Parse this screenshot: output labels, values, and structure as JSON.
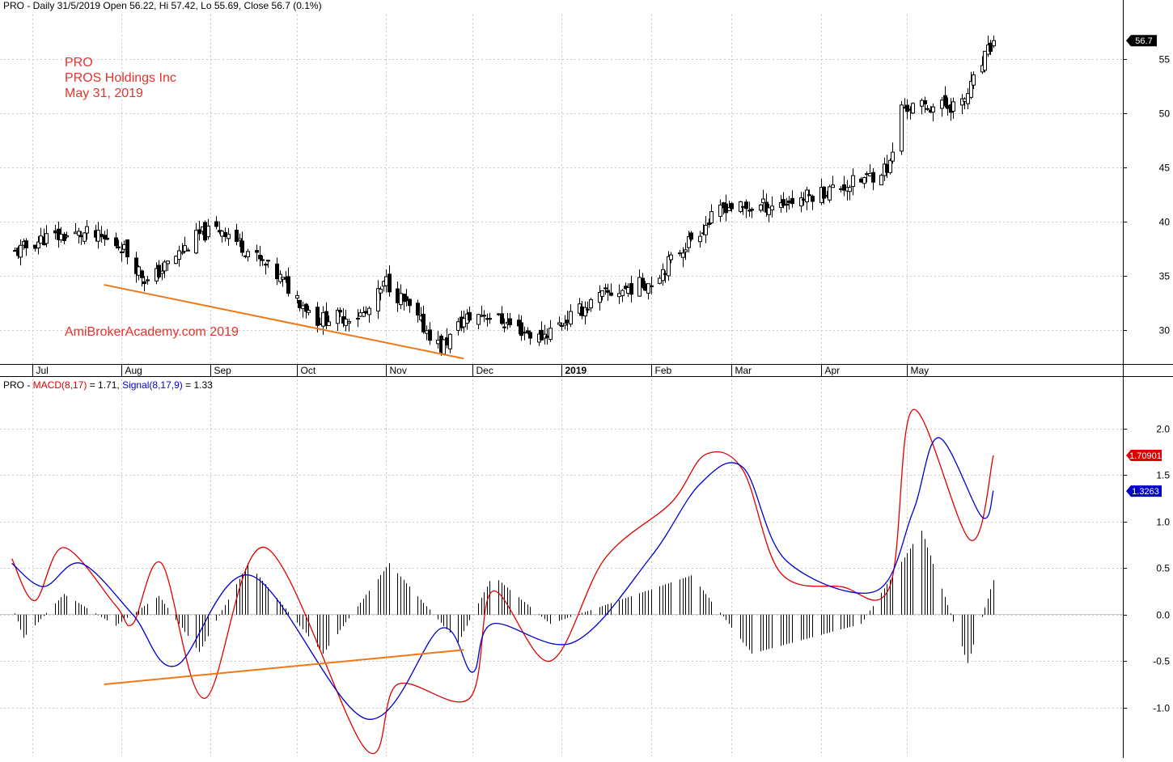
{
  "price_panel": {
    "header": "PRO - Daily 31/5/2019 Open 56.22, Hi 57.42, Lo 55.69, Close 56.7 (0.1%)",
    "annotations": [
      "PRO",
      "PROS Holdings Inc",
      "May 31, 2019"
    ],
    "watermark": "AmiBrokerAcademy.com  2019"
  },
  "macd_panel": {
    "header_prefix": "PRO - ",
    "macd_label": "MACD(8,17)",
    "macd_value_text": " = 1.71, ",
    "signal_label": "Signal(8,17,9)",
    "signal_value_text": " = 1.33"
  },
  "colors": {
    "macd_line": "#e00000",
    "signal_line": "#0000cc",
    "trendline": "#f07818",
    "annotation_text": "#e8322c",
    "candle": "#000000",
    "grid": "#c8c8c8"
  },
  "chart_data": [
    {
      "type": "candlestick",
      "title": "PRO - Daily 31/5/2019 Open 56.22, Hi 57.42, Lo 55.69, Close 56.7 (0.1%)",
      "x_tick_labels": [
        "Jul",
        "Aug",
        "Sep",
        "Oct",
        "Nov",
        "Dec",
        "2019",
        "Feb",
        "Mar",
        "Apr",
        "May"
      ],
      "y_tick_labels": [
        "30",
        "35",
        "40",
        "45",
        "50",
        "55"
      ],
      "ylim": [
        26.9,
        59.1
      ],
      "last_value_label": "56.7",
      "last_close": 56.7,
      "grid": true,
      "close_path": [
        {
          "month": "Jun",
          "day": 24,
          "close": 37.0
        },
        {
          "month": "Jul",
          "day": 5,
          "close": 38.5
        },
        {
          "month": "Jul",
          "day": 20,
          "close": 38.9
        },
        {
          "month": "Aug",
          "day": 1,
          "close": 37.8
        },
        {
          "month": "Aug",
          "day": 10,
          "close": 34.4
        },
        {
          "month": "Aug",
          "day": 28,
          "close": 38.8
        },
        {
          "month": "Sep",
          "day": 5,
          "close": 39.4
        },
        {
          "month": "Sep",
          "day": 25,
          "close": 34.8
        },
        {
          "month": "Oct",
          "day": 8,
          "close": 31.0
        },
        {
          "month": "Oct",
          "day": 25,
          "close": 31.5
        },
        {
          "month": "Nov",
          "day": 1,
          "close": 34.5
        },
        {
          "month": "Nov",
          "day": 20,
          "close": 28.4
        },
        {
          "month": "Nov",
          "day": 28,
          "close": 31.0
        },
        {
          "month": "Dec",
          "day": 5,
          "close": 31.6
        },
        {
          "month": "Dec",
          "day": 24,
          "close": 29.3
        },
        {
          "month": "Jan",
          "day": 15,
          "close": 33.2
        },
        {
          "month": "Feb",
          "day": 1,
          "close": 34.5
        },
        {
          "month": "Feb",
          "day": 15,
          "close": 38.5
        },
        {
          "month": "Feb",
          "day": 27,
          "close": 41.5
        },
        {
          "month": "Mar",
          "day": 5,
          "close": 41.2
        },
        {
          "month": "Mar",
          "day": 20,
          "close": 41.8
        },
        {
          "month": "Apr",
          "day": 15,
          "close": 43.8
        },
        {
          "month": "Apr",
          "day": 25,
          "close": 45.2
        },
        {
          "month": "Apr",
          "day": 29,
          "close": 50.5
        },
        {
          "month": "May",
          "day": 20,
          "close": 50.8
        },
        {
          "month": "May",
          "day": 31,
          "close": 56.7
        }
      ],
      "trendline": {
        "from": {
          "month": "Jul",
          "day": 26,
          "price": 34.2
        },
        "to": {
          "month": "Nov",
          "day": 28,
          "price": 27.4
        }
      }
    },
    {
      "type": "line+histogram",
      "title": "PRO - MACD(8,17) = 1.71, Signal(8,17,9) = 1.33",
      "y_tick_labels": [
        "-1.0",
        "-0.5",
        "0.0",
        "0.5",
        "1.0",
        "1.5",
        "2.0"
      ],
      "ylim": [
        -1.48,
        2.37
      ],
      "grid": true,
      "value_labels": {
        "macd": "1.70901",
        "signal": "1.3263"
      },
      "series": [
        {
          "name": "MACD(8,17)",
          "color": "#e00000",
          "points": [
            {
              "month": "Jun",
              "day": 24,
              "value": 0.6
            },
            {
              "month": "Jul",
              "day": 2,
              "value": 0.15
            },
            {
              "month": "Jul",
              "day": 12,
              "value": 0.72
            },
            {
              "month": "Jul",
              "day": 30,
              "value": 0.1
            },
            {
              "month": "Aug",
              "day": 5,
              "value": -0.1
            },
            {
              "month": "Aug",
              "day": 15,
              "value": 0.55
            },
            {
              "month": "Aug",
              "day": 30,
              "value": -0.9
            },
            {
              "month": "Sep",
              "day": 20,
              "value": 0.72
            },
            {
              "month": "Oct",
              "day": 25,
              "value": -1.45
            },
            {
              "month": "Nov",
              "day": 5,
              "value": -0.75
            },
            {
              "month": "Nov",
              "day": 30,
              "value": -0.9
            },
            {
              "month": "Dec",
              "day": 8,
              "value": 0.25
            },
            {
              "month": "Dec",
              "day": 28,
              "value": -0.5
            },
            {
              "month": "Jan",
              "day": 16,
              "value": 0.6
            },
            {
              "month": "Feb",
              "day": 8,
              "value": 1.2
            },
            {
              "month": "Feb",
              "day": 20,
              "value": 1.72
            },
            {
              "month": "Mar",
              "day": 5,
              "value": 1.55
            },
            {
              "month": "Mar",
              "day": 18,
              "value": 0.45
            },
            {
              "month": "Apr",
              "day": 8,
              "value": 0.3
            },
            {
              "month": "Apr",
              "day": 25,
              "value": 0.3
            },
            {
              "month": "May",
              "day": 3,
              "value": 2.2
            },
            {
              "month": "May",
              "day": 23,
              "value": 0.8
            },
            {
              "month": "May",
              "day": 31,
              "value": 1.71
            }
          ]
        },
        {
          "name": "Signal(8,17,9)",
          "color": "#0000cc",
          "points": [
            {
              "month": "Jun",
              "day": 24,
              "value": 0.55
            },
            {
              "month": "Jul",
              "day": 5,
              "value": 0.3
            },
            {
              "month": "Jul",
              "day": 18,
              "value": 0.55
            },
            {
              "month": "Aug",
              "day": 5,
              "value": 0.0
            },
            {
              "month": "Aug",
              "day": 20,
              "value": -0.55
            },
            {
              "month": "Sep",
              "day": 15,
              "value": 0.42
            },
            {
              "month": "Oct",
              "day": 25,
              "value": -1.12
            },
            {
              "month": "Nov",
              "day": 20,
              "value": -0.15
            },
            {
              "month": "Dec",
              "day": 1,
              "value": -0.62
            },
            {
              "month": "Dec",
              "day": 8,
              "value": -0.1
            },
            {
              "month": "Jan",
              "day": 5,
              "value": -0.3
            },
            {
              "month": "Feb",
              "day": 1,
              "value": 0.62
            },
            {
              "month": "Feb",
              "day": 18,
              "value": 1.4
            },
            {
              "month": "Mar",
              "day": 5,
              "value": 1.58
            },
            {
              "month": "Mar",
              "day": 20,
              "value": 0.58
            },
            {
              "month": "Apr",
              "day": 20,
              "value": 0.25
            },
            {
              "month": "May",
              "day": 3,
              "value": 1.1
            },
            {
              "month": "May",
              "day": 12,
              "value": 1.9
            },
            {
              "month": "May",
              "day": 27,
              "value": 1.05
            },
            {
              "month": "May",
              "day": 31,
              "value": 1.33
            }
          ]
        }
      ],
      "histogram": [
        {
          "month": "Jun",
          "day": 24,
          "value": 0.1
        },
        {
          "month": "Jun",
          "day": 28,
          "value": -0.25
        },
        {
          "month": "Jul",
          "day": 12,
          "value": 0.22
        },
        {
          "month": "Jul",
          "day": 30,
          "value": -0.12
        },
        {
          "month": "Aug",
          "day": 14,
          "value": 0.2
        },
        {
          "month": "Aug",
          "day": 28,
          "value": -0.4
        },
        {
          "month": "Sep",
          "day": 14,
          "value": 0.55
        },
        {
          "month": "Oct",
          "day": 10,
          "value": -0.42
        },
        {
          "month": "Nov",
          "day": 2,
          "value": 0.55
        },
        {
          "month": "Nov",
          "day": 26,
          "value": -0.3
        },
        {
          "month": "Dec",
          "day": 8,
          "value": 0.42
        },
        {
          "month": "Dec",
          "day": 28,
          "value": -0.1
        },
        {
          "month": "Feb",
          "day": 15,
          "value": 0.42
        },
        {
          "month": "Mar",
          "day": 8,
          "value": -0.42
        },
        {
          "month": "Apr",
          "day": 15,
          "value": -0.1
        },
        {
          "month": "May",
          "day": 6,
          "value": 0.9
        },
        {
          "month": "May",
          "day": 22,
          "value": -0.52
        },
        {
          "month": "May",
          "day": 31,
          "value": 0.37
        }
      ],
      "trendline": {
        "from": {
          "month": "Jul",
          "day": 26,
          "value": -0.75
        },
        "to": {
          "month": "Nov",
          "day": 28,
          "value": -0.38
        }
      }
    }
  ]
}
